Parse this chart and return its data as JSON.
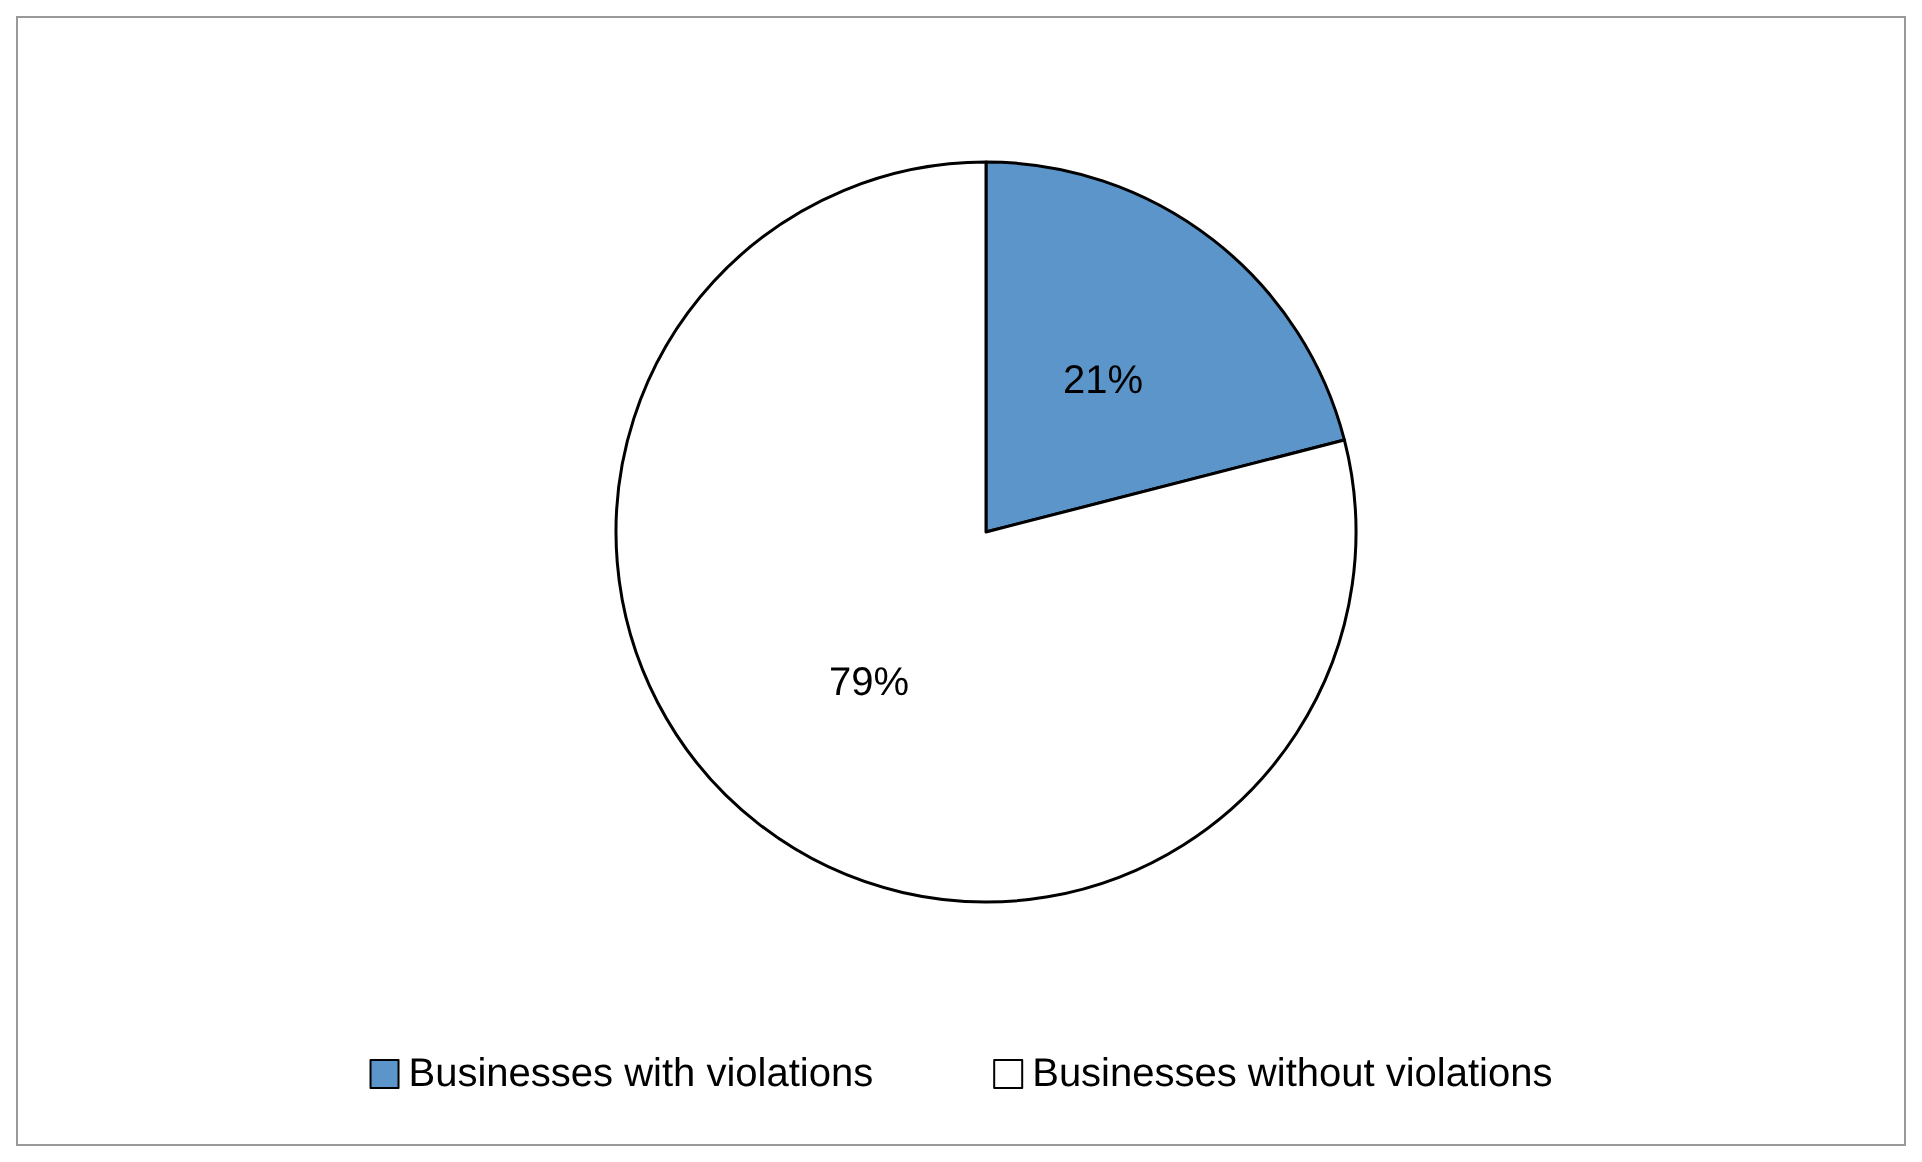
{
  "chart_data": {
    "type": "pie",
    "categories": [
      "Businesses with violations",
      "Businesses without violations"
    ],
    "values": [
      21,
      79
    ],
    "colors": [
      "#5b95c9",
      "#ffffff"
    ],
    "value_labels": [
      "21%",
      "79%"
    ],
    "legend": "bottom"
  }
}
